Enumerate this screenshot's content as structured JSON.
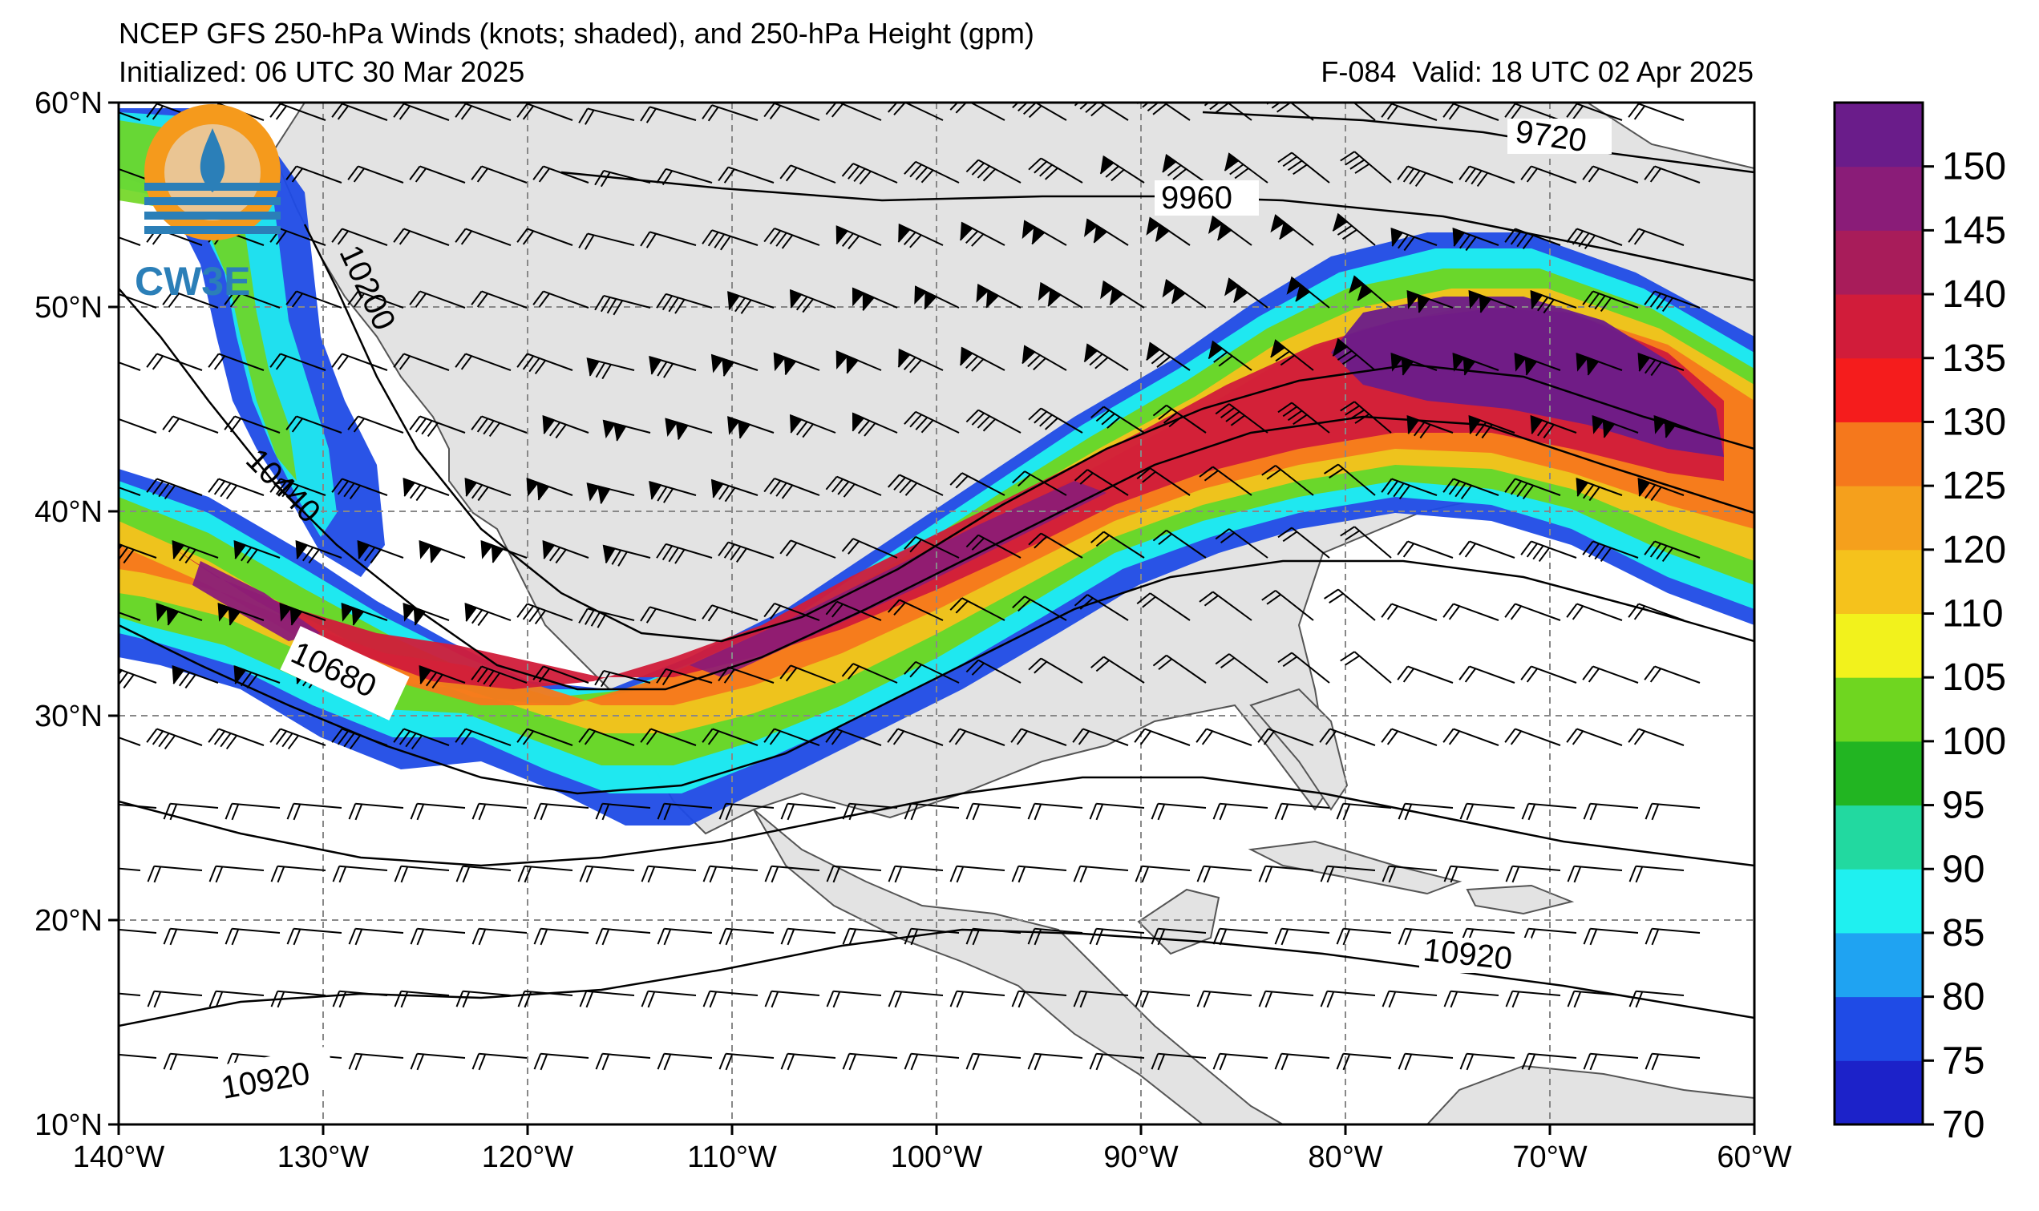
{
  "title": {
    "line1": "NCEP GFS 250-hPa Winds (knots; shaded), and 250-hPa Height (gpm)",
    "initialized": "Initialized: 06 UTC 30 Mar 2025",
    "valid": "F-084  Valid: 18 UTC 02 Apr 2025"
  },
  "logo": {
    "text": "CW3E",
    "icon": "cw3e-logo-icon"
  },
  "map": {
    "lon_range": [
      -140,
      -60
    ],
    "lat_range": [
      10,
      60
    ],
    "lon_labels": [
      "140°W",
      "130°W",
      "120°W",
      "110°W",
      "100°W",
      "90°W",
      "80°W",
      "70°W",
      "60°W"
    ],
    "lat_labels": [
      "60°N",
      "50°N",
      "40°N",
      "30°N",
      "20°N",
      "10°N"
    ],
    "grid": "dashed",
    "land_color": "#e3e3e3",
    "ocean_color": "#ffffff"
  },
  "height_contours": [
    {
      "label": "9720",
      "level": 9720
    },
    {
      "label": "9960",
      "level": 9960
    },
    {
      "label": "10200",
      "level": 10200
    },
    {
      "label": "10440",
      "level": 10440
    },
    {
      "label": "10680",
      "level": 10680
    },
    {
      "label": "10920",
      "level": 10920
    },
    {
      "label": "10920",
      "level": 10920
    }
  ],
  "colorbar": {
    "levels": [
      70,
      75,
      80,
      85,
      90,
      95,
      100,
      105,
      110,
      120,
      125,
      130,
      135,
      140,
      145,
      150
    ],
    "labels": [
      "70",
      "75",
      "80",
      "85",
      "90",
      "95",
      "100",
      "105",
      "110",
      "120",
      "125",
      "130",
      "135",
      "140",
      "145",
      "150"
    ],
    "colors": [
      "#1c22c9",
      "#1f4be6",
      "#1fa3f2",
      "#1ff0f0",
      "#22d9a0",
      "#22b522",
      "#6fd620",
      "#f2f21c",
      "#f5c21c",
      "#f5a01c",
      "#f5781c",
      "#f51c1c",
      "#d11c3a",
      "#a81c5a",
      "#8a1c78",
      "#6a1c8a"
    ]
  }
}
